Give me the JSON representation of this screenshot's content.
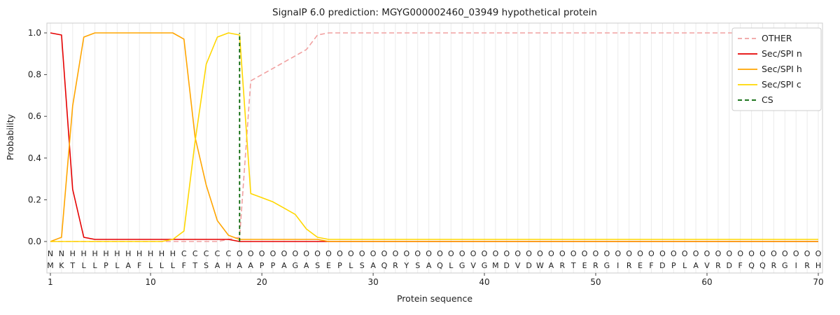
{
  "chart_data": {
    "type": "line",
    "title": "SignalP 6.0 prediction: MGYG000002460_03949 hypothetical protein",
    "xlabel": "Protein sequence",
    "ylabel": "Probability",
    "xlim": [
      0.7,
      70.3
    ],
    "ylim": [
      -0.15,
      1.05
    ],
    "xticks": [
      1,
      10,
      20,
      30,
      40,
      50,
      60,
      70
    ],
    "yticks": [
      0,
      0.2,
      0.4,
      0.6,
      0.8,
      1.0
    ],
    "grid": "vertical-per-residue",
    "legend_position": "upper right",
    "cs_position": 18,
    "sequence": "MKTLLPLAFLLLFTSAHAAPPAGASEPLSAQRYSAQLGVGMDVDWARTERGIREFDPLAVRDFQQRGIRH",
    "region_labels": "NNHHHHHHHHHHCCCCCOOOOOOOOOOOOOOOOOOOOOOOOOOOOOOOOOOOOOOOOOOOOOOOOOOOO",
    "colors": {
      "grid": "#ebebeb",
      "frame": "#cccccc",
      "sequence_text": "#1f1f1f",
      "regions": {
        "N": "#e50000",
        "H": "#ffa500",
        "C": "#ffd700",
        "O": "#bfbfbf"
      }
    },
    "series": [
      {
        "name": "OTHER",
        "color": "#f1a0a0",
        "dash": true,
        "values": [
          0,
          0,
          0,
          0,
          0,
          0,
          0,
          0,
          0,
          0,
          0,
          0,
          0,
          0,
          0,
          0,
          0.01,
          0.02,
          0.77,
          0.8,
          0.83,
          0.86,
          0.89,
          0.92,
          0.99,
          1,
          1,
          1,
          1,
          1,
          1,
          1,
          1,
          1,
          1,
          1,
          1,
          1,
          1,
          1,
          1,
          1,
          1,
          1,
          1,
          1,
          1,
          1,
          1,
          1,
          1,
          1,
          1,
          1,
          1,
          1,
          1,
          1,
          1,
          1,
          1,
          1,
          1,
          1,
          1,
          1,
          1,
          1,
          1,
          1
        ]
      },
      {
        "name": "Sec/SPI n",
        "color": "#e50000",
        "dash": false,
        "values": [
          1,
          0.99,
          0.25,
          0.02,
          0.01,
          0.01,
          0.01,
          0.01,
          0.01,
          0.01,
          0.01,
          0.01,
          0.01,
          0.01,
          0.01,
          0.01,
          0.01,
          0,
          0,
          0,
          0,
          0,
          0,
          0,
          0,
          0,
          0,
          0,
          0,
          0,
          0,
          0,
          0,
          0,
          0,
          0,
          0,
          0,
          0,
          0,
          0,
          0,
          0,
          0,
          0,
          0,
          0,
          0,
          0,
          0,
          0,
          0,
          0,
          0,
          0,
          0,
          0,
          0,
          0,
          0,
          0,
          0,
          0,
          0,
          0,
          0,
          0,
          0,
          0,
          0
        ]
      },
      {
        "name": "Sec/SPI h",
        "color": "#ffa500",
        "dash": false,
        "values": [
          0,
          0.02,
          0.65,
          0.98,
          1,
          1,
          1,
          1,
          1,
          1,
          1,
          1,
          0.97,
          0.5,
          0.27,
          0.1,
          0.03,
          0.01,
          0.01,
          0.01,
          0.01,
          0.01,
          0.01,
          0.01,
          0.01,
          0,
          0,
          0,
          0,
          0,
          0,
          0,
          0,
          0,
          0,
          0,
          0,
          0,
          0,
          0,
          0,
          0,
          0,
          0,
          0,
          0,
          0,
          0,
          0,
          0,
          0,
          0,
          0,
          0,
          0,
          0,
          0,
          0,
          0,
          0,
          0,
          0,
          0,
          0,
          0,
          0,
          0,
          0,
          0,
          0
        ]
      },
      {
        "name": "Sec/SPI c",
        "color": "#ffd700",
        "dash": false,
        "values": [
          0,
          0,
          0,
          0,
          0,
          0,
          0,
          0,
          0,
          0,
          0,
          0.01,
          0.05,
          0.48,
          0.85,
          0.98,
          1,
          0.99,
          0.23,
          0.21,
          0.19,
          0.16,
          0.13,
          0.06,
          0.02,
          0.01,
          0.01,
          0.01,
          0.01,
          0.01,
          0.01,
          0.01,
          0.01,
          0.01,
          0.01,
          0.01,
          0.01,
          0.01,
          0.01,
          0.01,
          0.01,
          0.01,
          0.01,
          0.01,
          0.01,
          0.01,
          0.01,
          0.01,
          0.01,
          0.01,
          0.01,
          0.01,
          0.01,
          0.01,
          0.01,
          0.01,
          0.01,
          0.01,
          0.01,
          0.01,
          0.01,
          0.01,
          0.01,
          0.01,
          0.01,
          0.01,
          0.01,
          0.01,
          0.01,
          0.01
        ]
      },
      {
        "name": "CS",
        "color": "#006400",
        "dash": true,
        "vline": 18
      }
    ]
  }
}
